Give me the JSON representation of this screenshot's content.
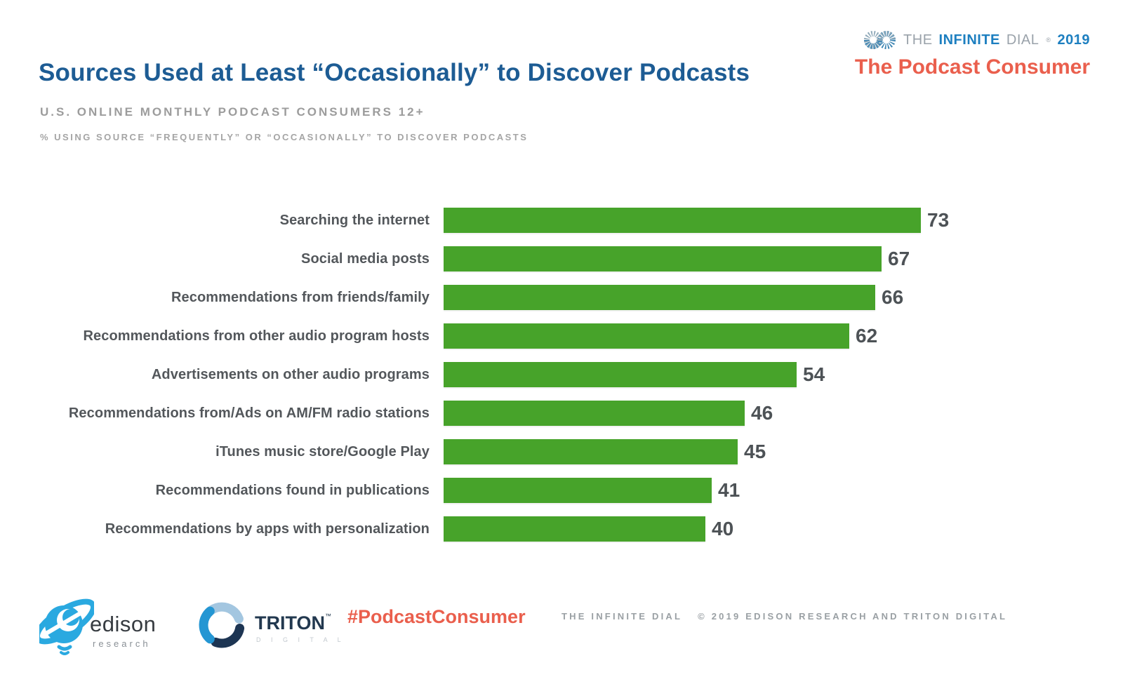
{
  "header": {
    "title": "Sources Used at Least “Occasionally” to Discover Podcasts",
    "subtitle": "U.S. ONLINE MONTHLY PODCAST CONSUMERS 12+",
    "note": "% USING SOURCE “FREQUENTLY” OR “OCCASIONALLY” TO DISCOVER PODCASTS",
    "brand": {
      "the": "THE",
      "infinite": "INFINITE",
      "dial": "DIAL",
      "reg": "®",
      "year": "2019",
      "report": "The Podcast Consumer"
    }
  },
  "chart_data": {
    "type": "bar",
    "orientation": "horizontal",
    "title": "Sources Used at Least “Occasionally” to Discover Podcasts",
    "subtitle": "U.S. ONLINE MONTHLY PODCAST CONSUMERS 12+",
    "note": "% USING SOURCE “FREQUENTLY” OR “OCCASIONALLY” TO DISCOVER PODCASTS",
    "categories": [
      "Searching the internet",
      "Social media posts",
      "Recommendations from friends/family",
      "Recommendations from other audio program hosts",
      "Advertisements on other audio programs",
      "Recommendations from/Ads on AM/FM radio stations",
      "iTunes music store/Google Play",
      "Recommendations found in publications",
      "Recommendations by apps with personalization"
    ],
    "values": [
      73,
      67,
      66,
      62,
      54,
      46,
      45,
      41,
      40
    ],
    "xlabel": "",
    "ylabel": "",
    "xlim": [
      0,
      75
    ],
    "grid": false,
    "legend": false,
    "value_labels_shown": true,
    "bar_color": "#47a32a",
    "value_label_color": "#4d5256"
  },
  "footer": {
    "edison": {
      "name": "edison",
      "sub": "research"
    },
    "triton": {
      "name": "TRITON",
      "tm": "™",
      "sub": "D I G I T A L"
    },
    "hashtag": "#PodcastConsumer",
    "copyright_left": "THE INFINITE DIAL",
    "copyright_right": "© 2019 EDISON RESEARCH AND TRITON DIGITAL"
  },
  "colors": {
    "title_blue": "#1d5c94",
    "bar_green": "#47a32a",
    "accent_coral": "#ea5f4d",
    "brand_blue": "#1d7fc0",
    "muted_gray": "#9c9c9c"
  }
}
